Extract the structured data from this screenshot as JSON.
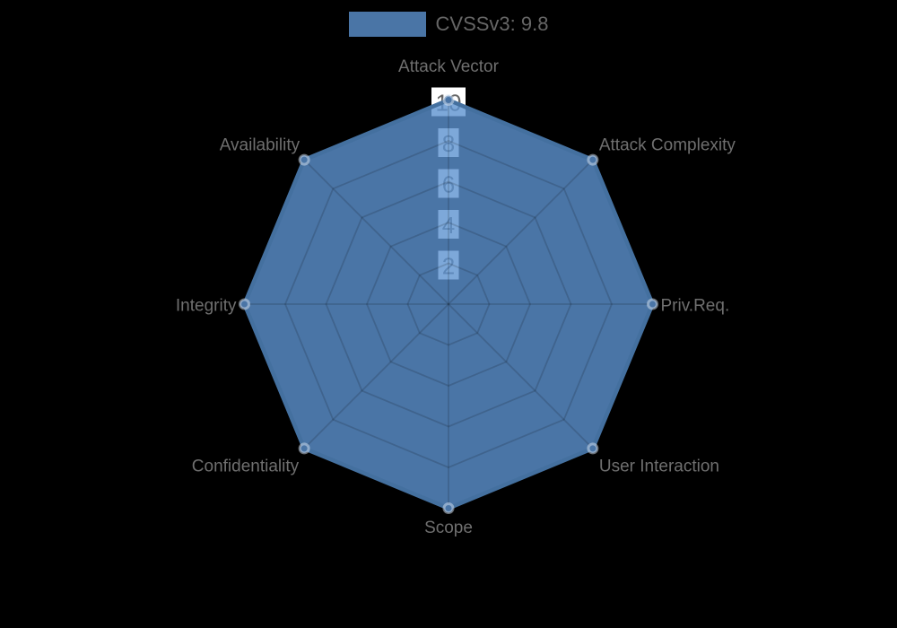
{
  "legend": {
    "label": "CVSSv3: 9.8"
  },
  "chart_data": {
    "type": "radar",
    "categories": [
      "Attack Vector",
      "Attack Complexity",
      "Priv.Req.",
      "User Interaction",
      "Scope",
      "Confidentiality",
      "Integrity",
      "Availability"
    ],
    "series": [
      {
        "name": "CVSSv3: 9.8",
        "values": [
          10,
          10,
          10,
          10,
          10,
          10,
          10,
          10
        ]
      }
    ],
    "scale": {
      "min": 0,
      "max": 10,
      "ticks": [
        2,
        4,
        6,
        8,
        10
      ]
    },
    "grid": true,
    "legend_position": "top",
    "colors": {
      "background": "#000000",
      "series_fill": "#5c92cf",
      "series_fill_opacity": 0.8,
      "series_border": "#44709f",
      "series_solid": "#4a75a6",
      "grid_line": "rgba(0,0,0,0.15)",
      "tick_text": "#666666",
      "tick_backdrop": "#ffffff",
      "axis_label": "#6f6f6f",
      "legend_text": "#666666"
    }
  }
}
